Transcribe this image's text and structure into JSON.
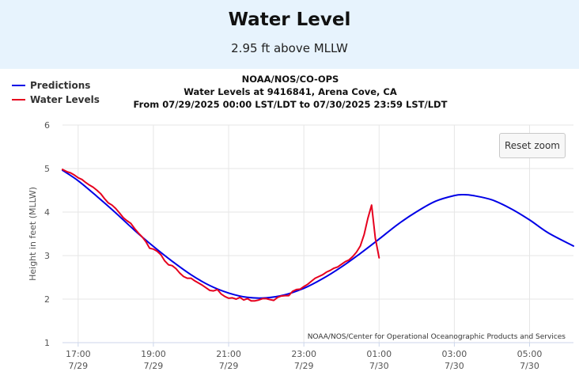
{
  "header": {
    "title": "Water Level",
    "subtitle": "2.95 ft above MLLW"
  },
  "buttons": {
    "reset_zoom": "Reset zoom"
  },
  "colors": {
    "header_bg": "#e7f3fd",
    "predictions": "#0000e6",
    "water_levels": "#e6001e",
    "grid": "#e6e6e6"
  },
  "chart_data": {
    "type": "line",
    "title_lines": [
      "NOAA/NOS/CO-OPS",
      "Water Levels at 9416841, Arena Cove, CA",
      "From 07/29/2025 00:00 LST/LDT to 07/30/2025 23:59 LST/LDT"
    ],
    "ylabel": "Height in feet (MLLW)",
    "ylim": [
      1,
      6
    ],
    "yticks": [
      "1",
      "2",
      "3",
      "4",
      "5",
      "6"
    ],
    "xlim": [
      "07/29 16:35",
      "07/30 06:10"
    ],
    "xticks": [
      {
        "time": "07/29 17:00",
        "label": [
          "17:00",
          "7/29"
        ]
      },
      {
        "time": "07/29 19:00",
        "label": [
          "19:00",
          "7/29"
        ]
      },
      {
        "time": "07/29 21:00",
        "label": [
          "21:00",
          "7/29"
        ]
      },
      {
        "time": "07/29 23:00",
        "label": [
          "23:00",
          "7/29"
        ]
      },
      {
        "time": "07/30 01:00",
        "label": [
          "01:00",
          "7/30"
        ]
      },
      {
        "time": "07/30 03:00",
        "label": [
          "03:00",
          "7/30"
        ]
      },
      {
        "time": "07/30 05:00",
        "label": [
          "05:00",
          "7/30"
        ]
      }
    ],
    "legend_position": "top-left",
    "grid": true,
    "credit": "NOAA/NOS/Center for Operational Oceanographic Products and Services",
    "series": [
      {
        "name": "Predictions",
        "color": "#0000e6",
        "points": [
          [
            "07/29 16:35",
            4.96
          ],
          [
            "07/29 17:00",
            4.72
          ],
          [
            "07/29 17:30",
            4.36
          ],
          [
            "07/29 18:00",
            3.98
          ],
          [
            "07/29 18:30",
            3.58
          ],
          [
            "07/29 19:00",
            3.21
          ],
          [
            "07/29 19:30",
            2.87
          ],
          [
            "07/29 20:00",
            2.56
          ],
          [
            "07/29 20:30",
            2.31
          ],
          [
            "07/29 21:00",
            2.14
          ],
          [
            "07/29 21:30",
            2.04
          ],
          [
            "07/29 22:00",
            2.03
          ],
          [
            "07/29 22:30",
            2.1
          ],
          [
            "07/29 23:00",
            2.25
          ],
          [
            "07/29 23:30",
            2.47
          ],
          [
            "07/30 00:00",
            2.74
          ],
          [
            "07/30 00:30",
            3.05
          ],
          [
            "07/30 01:00",
            3.38
          ],
          [
            "07/30 01:30",
            3.72
          ],
          [
            "07/30 02:00",
            4.01
          ],
          [
            "07/30 02:30",
            4.25
          ],
          [
            "07/30 03:00",
            4.38
          ],
          [
            "07/30 03:15",
            4.4
          ],
          [
            "07/30 03:30",
            4.38
          ],
          [
            "07/30 04:00",
            4.28
          ],
          [
            "07/30 04:30",
            4.08
          ],
          [
            "07/30 05:00",
            3.82
          ],
          [
            "07/30 05:30",
            3.52
          ],
          [
            "07/30 06:10",
            3.22
          ]
        ]
      },
      {
        "name": "Water Levels",
        "color": "#e6001e",
        "points": [
          [
            "07/29 16:35",
            4.98
          ],
          [
            "07/29 16:42",
            4.93
          ],
          [
            "07/29 16:48",
            4.9
          ],
          [
            "07/29 16:54",
            4.85
          ],
          [
            "07/29 17:00",
            4.79
          ],
          [
            "07/29 17:06",
            4.75
          ],
          [
            "07/29 17:12",
            4.68
          ],
          [
            "07/29 17:18",
            4.62
          ],
          [
            "07/29 17:24",
            4.57
          ],
          [
            "07/29 17:30",
            4.5
          ],
          [
            "07/29 17:36",
            4.42
          ],
          [
            "07/29 17:42",
            4.31
          ],
          [
            "07/29 17:48",
            4.21
          ],
          [
            "07/29 17:54",
            4.16
          ],
          [
            "07/29 18:00",
            4.08
          ],
          [
            "07/29 18:06",
            3.98
          ],
          [
            "07/29 18:12",
            3.87
          ],
          [
            "07/29 18:18",
            3.8
          ],
          [
            "07/29 18:24",
            3.74
          ],
          [
            "07/29 18:30",
            3.62
          ],
          [
            "07/29 18:36",
            3.52
          ],
          [
            "07/29 18:42",
            3.43
          ],
          [
            "07/29 18:48",
            3.32
          ],
          [
            "07/29 18:54",
            3.17
          ],
          [
            "07/29 19:00",
            3.15
          ],
          [
            "07/29 19:06",
            3.1
          ],
          [
            "07/29 19:12",
            3.02
          ],
          [
            "07/29 19:18",
            2.88
          ],
          [
            "07/29 19:24",
            2.79
          ],
          [
            "07/29 19:30",
            2.77
          ],
          [
            "07/29 19:36",
            2.7
          ],
          [
            "07/29 19:42",
            2.6
          ],
          [
            "07/29 19:48",
            2.52
          ],
          [
            "07/29 19:54",
            2.48
          ],
          [
            "07/29 20:00",
            2.48
          ],
          [
            "07/29 20:06",
            2.42
          ],
          [
            "07/29 20:12",
            2.37
          ],
          [
            "07/29 20:18",
            2.32
          ],
          [
            "07/29 20:24",
            2.26
          ],
          [
            "07/29 20:30",
            2.2
          ],
          [
            "07/29 20:36",
            2.19
          ],
          [
            "07/29 20:42",
            2.22
          ],
          [
            "07/29 20:48",
            2.12
          ],
          [
            "07/29 20:54",
            2.06
          ],
          [
            "07/29 21:00",
            2.02
          ],
          [
            "07/29 21:06",
            2.03
          ],
          [
            "07/29 21:12",
            2.0
          ],
          [
            "07/29 21:18",
            2.04
          ],
          [
            "07/29 21:24",
            1.98
          ],
          [
            "07/29 21:30",
            2.01
          ],
          [
            "07/29 21:36",
            1.96
          ],
          [
            "07/29 21:42",
            1.96
          ],
          [
            "07/29 21:48",
            1.98
          ],
          [
            "07/29 21:54",
            2.01
          ],
          [
            "07/29 22:00",
            2.01
          ],
          [
            "07/29 22:06",
            1.99
          ],
          [
            "07/29 22:12",
            1.97
          ],
          [
            "07/29 22:18",
            2.04
          ],
          [
            "07/29 22:24",
            2.07
          ],
          [
            "07/29 22:30",
            2.08
          ],
          [
            "07/29 22:36",
            2.08
          ],
          [
            "07/29 22:42",
            2.18
          ],
          [
            "07/29 22:48",
            2.22
          ],
          [
            "07/29 22:54",
            2.23
          ],
          [
            "07/29 23:00",
            2.29
          ],
          [
            "07/29 23:06",
            2.34
          ],
          [
            "07/29 23:12",
            2.41
          ],
          [
            "07/29 23:18",
            2.48
          ],
          [
            "07/29 23:24",
            2.52
          ],
          [
            "07/29 23:30",
            2.56
          ],
          [
            "07/29 23:36",
            2.62
          ],
          [
            "07/29 23:42",
            2.66
          ],
          [
            "07/29 23:48",
            2.71
          ],
          [
            "07/29 23:54",
            2.74
          ],
          [
            "07/30 00:00",
            2.8
          ],
          [
            "07/30 00:06",
            2.86
          ],
          [
            "07/30 00:12",
            2.9
          ],
          [
            "07/30 00:18",
            2.98
          ],
          [
            "07/30 00:24",
            3.08
          ],
          [
            "07/30 00:30",
            3.22
          ],
          [
            "07/30 00:36",
            3.48
          ],
          [
            "07/30 00:42",
            3.85
          ],
          [
            "07/30 00:48",
            4.16
          ],
          [
            "07/30 00:54",
            3.4
          ],
          [
            "07/30 01:00",
            2.95
          ]
        ]
      }
    ]
  }
}
